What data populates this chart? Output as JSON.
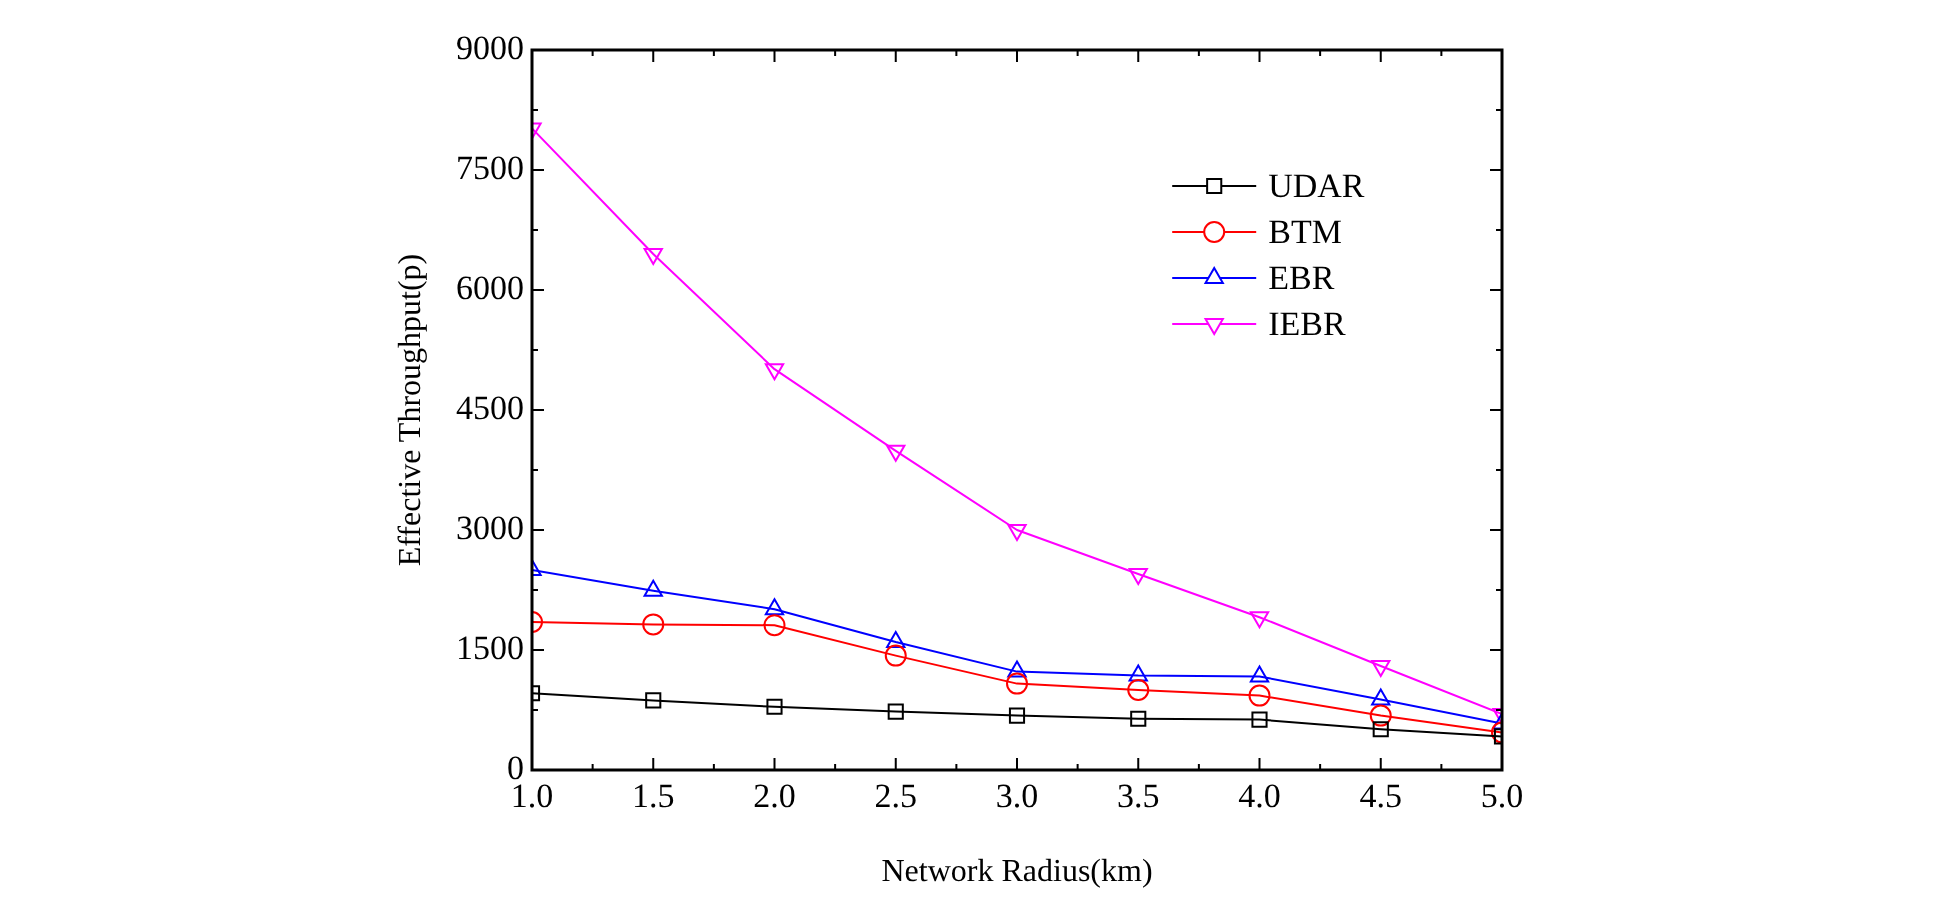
{
  "chart_data": {
    "type": "line",
    "xlabel": "Network Radius(km)",
    "ylabel": "Effective Throughput(p)",
    "x": [
      1.0,
      1.5,
      2.0,
      2.5,
      3.0,
      3.5,
      4.0,
      4.5,
      5.0
    ],
    "xlim": [
      1.0,
      5.0
    ],
    "xticks": [
      {
        "value": 1,
        "label": "1.0"
      },
      {
        "value": 1.5,
        "label": "1.5"
      },
      {
        "value": 2,
        "label": "2.0"
      },
      {
        "value": 2.5,
        "label": "2.5"
      },
      {
        "value": 3,
        "label": "3.0"
      },
      {
        "value": 3.5,
        "label": "3.5"
      },
      {
        "value": 4,
        "label": "4.0"
      },
      {
        "value": 4.5,
        "label": "4.5"
      },
      {
        "value": 5,
        "label": "5.0"
      }
    ],
    "ylim": [
      0,
      9000
    ],
    "yticks": [
      0,
      1500,
      3000,
      4500,
      6000,
      7500,
      9000
    ],
    "grid": false,
    "legend": "top right",
    "line_style": "solid",
    "series": [
      {
        "name": "UDAR",
        "color": "#000000",
        "marker": "square",
        "values": [
          960,
          870,
          790,
          730,
          680,
          640,
          630,
          510,
          420
        ]
      },
      {
        "name": "BTM",
        "color": "#ff0000",
        "marker": "circle",
        "values": [
          1850,
          1820,
          1810,
          1430,
          1080,
          1000,
          930,
          680,
          470
        ]
      },
      {
        "name": "EBR",
        "color": "#0000ff",
        "marker": "triangle",
        "values": [
          2500,
          2240,
          2010,
          1600,
          1230,
          1180,
          1170,
          880,
          580
        ]
      },
      {
        "name": "IEBR",
        "color": "#ff00ff",
        "marker": "triangle-down",
        "values": [
          8020,
          6450,
          5010,
          3990,
          3000,
          2450,
          1910,
          1300,
          700
        ]
      }
    ]
  }
}
